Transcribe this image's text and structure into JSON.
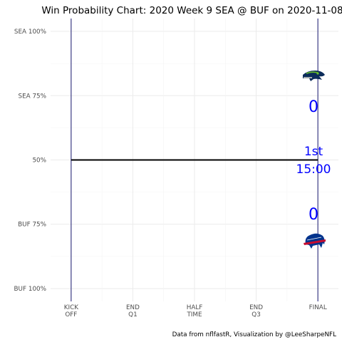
{
  "chart_data": {
    "type": "line",
    "title": "Win Probability Chart: 2020 Week 9 SEA @ BUF on 2020-11-08",
    "xlabel": "",
    "ylabel": "",
    "x_ticks": [
      {
        "value": 0,
        "label": [
          "KICK",
          "OFF"
        ]
      },
      {
        "value": 15,
        "label": [
          "END",
          "Q1"
        ]
      },
      {
        "value": 30,
        "label": [
          "HALF",
          "TIME"
        ]
      },
      {
        "value": 45,
        "label": [
          "END",
          "Q3"
        ]
      },
      {
        "value": 60,
        "label": [
          "FINAL"
        ]
      }
    ],
    "y_ticks": [
      {
        "value": 100,
        "label": "SEA 100%"
      },
      {
        "value": 75,
        "label": "SEA 75%"
      },
      {
        "value": 50,
        "label": "50%"
      },
      {
        "value": 25,
        "label": "BUF 75%"
      },
      {
        "value": 0,
        "label": "BUF 100%"
      }
    ],
    "xlim": [
      -5,
      65
    ],
    "ylim": [
      -5,
      105
    ],
    "series": [
      {
        "values": [
          {
            "x": 0,
            "y": 50
          },
          {
            "x": 60,
            "y": 50
          }
        ],
        "color": "#000000"
      }
    ],
    "vlines": [
      {
        "x": 0,
        "color": "#191970"
      },
      {
        "x": 60,
        "color": "#191970"
      }
    ],
    "grid": true,
    "legend": "none",
    "annotations": {
      "away_score": "0",
      "home_score": "0",
      "quarter": "1st",
      "clock": "15:00"
    },
    "logos": {
      "away": "seahawks-logo",
      "home": "bills-logo"
    },
    "caption": "Data from nflfastR, Visualization by @LeeSharpeNFL"
  }
}
